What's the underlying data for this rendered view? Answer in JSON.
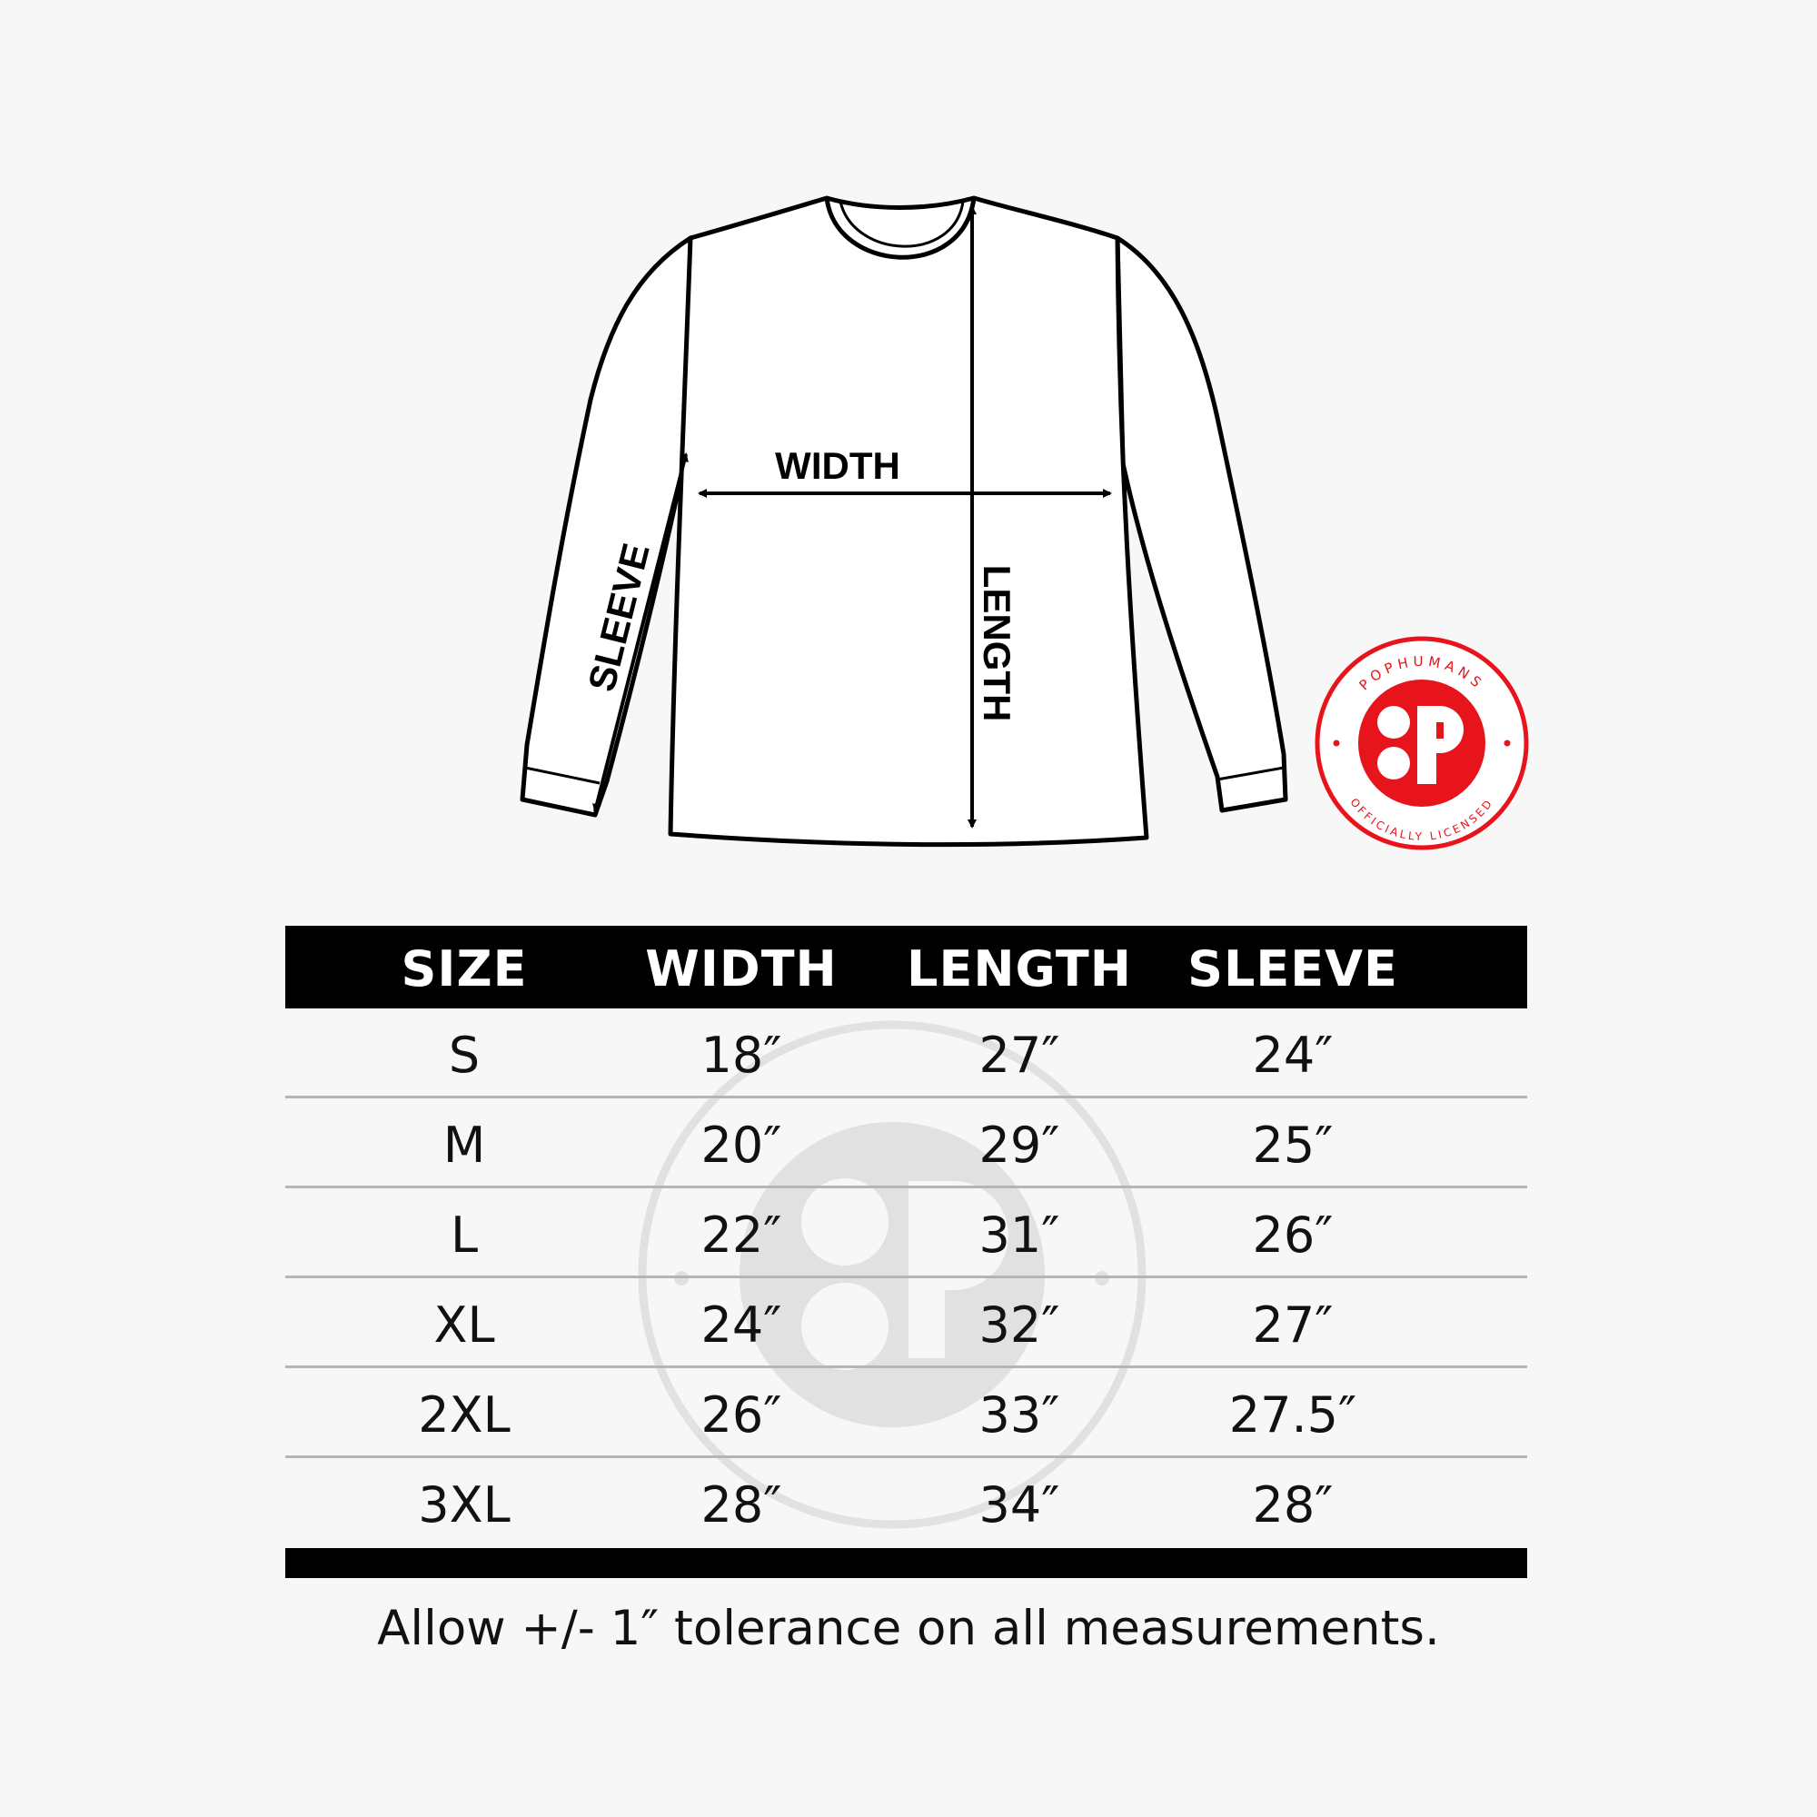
{
  "diagram": {
    "labels": {
      "width": "WIDTH",
      "length": "LENGTH",
      "sleeve": "SLEEVE"
    }
  },
  "logo": {
    "top_text": "POPHUMANS",
    "bottom_text": "OFFICIALLY LICENSED",
    "color": "#e8141b"
  },
  "table": {
    "headers": [
      "SIZE",
      "WIDTH",
      "LENGTH",
      "SLEEVE"
    ],
    "rows": [
      [
        "S",
        "18″",
        "27″",
        "24″"
      ],
      [
        "M",
        "20″",
        "29″",
        "25″"
      ],
      [
        "L",
        "22″",
        "31″",
        "26″"
      ],
      [
        "XL",
        "24″",
        "32″",
        "27″"
      ],
      [
        "2XL",
        "26″",
        "33″",
        "27.5″"
      ],
      [
        "3XL",
        "28″",
        "34″",
        "28″"
      ]
    ]
  },
  "note": "Allow +/- 1″ tolerance on all measurements."
}
